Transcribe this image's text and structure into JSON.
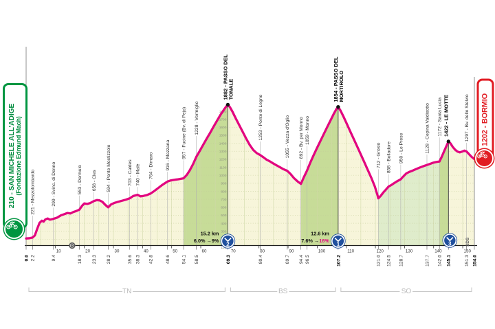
{
  "page": {
    "background": "#ffffff"
  },
  "start_label": {
    "line1": "210 - SAN MICHELE ALL'ADIGE",
    "line2": "(Fondazione Edmund Mach)"
  },
  "finish_label": {
    "text": "1202 - BORMIO"
  },
  "sds_label": "SDS",
  "provinces": [
    {
      "code": "TN",
      "from_km": 0,
      "to_km": 69.3
    },
    {
      "code": "BS",
      "from_km": 69.3,
      "to_km": 107.2
    },
    {
      "code": "SO",
      "from_km": 107.2,
      "to_km": 154
    }
  ],
  "colors": {
    "pink": "#e2067f",
    "cream": "#f7f5da",
    "band_mid": "#c7dc98",
    "band_light": "#dfeccb",
    "grid_v": "#cfd8a8",
    "grid_h": "#c3cb98",
    "axis": "#1c1c1c",
    "border": "#909090",
    "label": "#2e2e2e",
    "soft": "#9b9b9b",
    "ladder": "#8e9480",
    "blue": "#20509e",
    "green": "#009540",
    "red": "#e11b22",
    "bracket": "#c8c8c8",
    "province": "#b8b8b8"
  },
  "chart_data": {
    "type": "area",
    "x_unit": "km",
    "y_unit": "m",
    "xlim": [
      0,
      154
    ],
    "axis": {
      "x_tick_step": 10,
      "x_first_label": 10,
      "x_last_label": 150
    },
    "elevation_scale": {
      "min": 100,
      "max": 1800,
      "step": 100,
      "at_km": 69.3
    },
    "arrow": "→",
    "waypoints": [
      {
        "km": 0.0,
        "elev": 210,
        "name": null,
        "bold": true
      },
      {
        "km": 2.2,
        "elev": 221,
        "name": "Mezzolombardo"
      },
      {
        "km": 9.4,
        "elev": 299,
        "name": "Svinc. di Denno"
      },
      {
        "km": 18.3,
        "elev": 553,
        "name": "Dermulo"
      },
      {
        "km": 23.3,
        "elev": 658,
        "name": "Cles"
      },
      {
        "km": 28.2,
        "elev": 594,
        "name": "Ponte Mostizzolo"
      },
      {
        "km": 35.6,
        "elev": 703,
        "name": "Caldes"
      },
      {
        "km": 38.3,
        "elev": 740,
        "name": "Malè"
      },
      {
        "km": 42.8,
        "elev": 764,
        "name": "Dimaro"
      },
      {
        "km": 48.6,
        "elev": 916,
        "name": "Mezzana"
      },
      {
        "km": 54.1,
        "elev": 957,
        "name": "Fucine (Bv. di Pejo)"
      },
      {
        "km": 58.5,
        "elev": 1228,
        "name": "Vermiglio"
      },
      {
        "km": 69.3,
        "elev": 1882,
        "name": "PASSO DEL TONALE",
        "lines": [
          "1882 - PASSO DEL",
          "TONALE"
        ],
        "bold": true,
        "peak": true
      },
      {
        "km": 80.4,
        "elev": 1253,
        "name": "Ponte di Legno"
      },
      {
        "km": 89.7,
        "elev": 1055,
        "name": "Vezza d'Oglio"
      },
      {
        "km": 94.4,
        "elev": 892,
        "name": "Bv. per Monno"
      },
      {
        "km": 96.5,
        "elev": 1059,
        "name": "Monno"
      },
      {
        "km": 107.2,
        "elev": 1854,
        "name": "PASSO DEL MORTIROLO",
        "lines": [
          "1854 - PASSO DEL",
          "MORTIROLO"
        ],
        "bold": true,
        "peak": true
      },
      {
        "km": 121.0,
        "elev": 712,
        "name": "Grosio"
      },
      {
        "km": 124.5,
        "elev": 858,
        "name": "Bolladore"
      },
      {
        "km": 128.7,
        "elev": 950,
        "name": "Le Prese"
      },
      {
        "km": 137.7,
        "elev": 1128,
        "name": "Cepina Valdisotto"
      },
      {
        "km": 142.0,
        "elev": 1172,
        "name": "Santa Lucia"
      },
      {
        "km": 145.1,
        "elev": 1422,
        "name": "LE MOTTE",
        "lines": [
          "1422 - LE MOTTE"
        ],
        "bold": true,
        "peak": true
      },
      {
        "km": 151.3,
        "elev": 1297,
        "name": "Bv. dello Stelvio"
      },
      {
        "km": 154.0,
        "elev": 1202,
        "name": null,
        "bold": true
      }
    ],
    "climbs": [
      {
        "summit_km": 69.3,
        "category": "2",
        "length": "15.2 km",
        "avg": "6.0%",
        "max": "9%",
        "max_highlight": false,
        "stats": true
      },
      {
        "summit_km": 107.2,
        "category": "1",
        "length": "12.6 km",
        "avg": "7.6%",
        "max": "16%",
        "max_highlight": true,
        "stats": true
      },
      {
        "summit_km": 145.1,
        "category": "3",
        "stats": false
      }
    ],
    "bands": [
      {
        "from": 54.1,
        "to": 69.3,
        "shade": "mid"
      },
      {
        "from": 94.4,
        "to": 107.2,
        "shade": "mid"
      },
      {
        "from": 121.0,
        "to": 142.0,
        "shade": "light"
      },
      {
        "from": 142.0,
        "to": 145.1,
        "shade": "mid"
      }
    ],
    "axis_marker_km": 15.8,
    "profile": [
      [
        0,
        210
      ],
      [
        1.2,
        213
      ],
      [
        2.2,
        221
      ],
      [
        3,
        248
      ],
      [
        3.8,
        330
      ],
      [
        4.6,
        405
      ],
      [
        5.4,
        432
      ],
      [
        6,
        420
      ],
      [
        6.6,
        448
      ],
      [
        7.4,
        460
      ],
      [
        8.2,
        445
      ],
      [
        9.4,
        455
      ],
      [
        10.6,
        470
      ],
      [
        12,
        500
      ],
      [
        13.2,
        515
      ],
      [
        14.2,
        528
      ],
      [
        15.2,
        522
      ],
      [
        16.2,
        540
      ],
      [
        17.2,
        552
      ],
      [
        18.3,
        570
      ],
      [
        19.2,
        618
      ],
      [
        20,
        648
      ],
      [
        21,
        642
      ],
      [
        22,
        652
      ],
      [
        23.3,
        678
      ],
      [
        24.3,
        690
      ],
      [
        25.2,
        686
      ],
      [
        26.2,
        668
      ],
      [
        27.2,
        630
      ],
      [
        28.2,
        600
      ],
      [
        29.2,
        636
      ],
      [
        30.4,
        655
      ],
      [
        31.6,
        668
      ],
      [
        33,
        682
      ],
      [
        34.3,
        695
      ],
      [
        35.6,
        712
      ],
      [
        36.8,
        740
      ],
      [
        38.3,
        756
      ],
      [
        39.3,
        736
      ],
      [
        40.3,
        742
      ],
      [
        41.5,
        752
      ],
      [
        42.8,
        772
      ],
      [
        44,
        802
      ],
      [
        45.3,
        838
      ],
      [
        46.6,
        874
      ],
      [
        48,
        908
      ],
      [
        48.6,
        922
      ],
      [
        49.8,
        936
      ],
      [
        51,
        944
      ],
      [
        52.3,
        950
      ],
      [
        54.1,
        962
      ],
      [
        55.2,
        1005
      ],
      [
        56.2,
        1060
      ],
      [
        57.3,
        1135
      ],
      [
        58.5,
        1232
      ],
      [
        59.6,
        1300
      ],
      [
        60.8,
        1378
      ],
      [
        62,
        1455
      ],
      [
        63.2,
        1530
      ],
      [
        64.4,
        1608
      ],
      [
        65.6,
        1682
      ],
      [
        66.8,
        1757
      ],
      [
        68,
        1822
      ],
      [
        68.8,
        1862
      ],
      [
        69.3,
        1882
      ],
      [
        70,
        1852
      ],
      [
        70.8,
        1800
      ],
      [
        72,
        1713
      ],
      [
        73.2,
        1628
      ],
      [
        74.4,
        1543
      ],
      [
        75.6,
        1458
      ],
      [
        76.8,
        1380
      ],
      [
        78,
        1318
      ],
      [
        79.2,
        1278
      ],
      [
        80.4,
        1253
      ],
      [
        81.4,
        1228
      ],
      [
        82.6,
        1195
      ],
      [
        83.8,
        1172
      ],
      [
        84.8,
        1150
      ],
      [
        85.8,
        1128
      ],
      [
        87,
        1105
      ],
      [
        88.3,
        1078
      ],
      [
        89.7,
        1055
      ],
      [
        90.8,
        1018
      ],
      [
        92,
        965
      ],
      [
        93.2,
        925
      ],
      [
        94.4,
        892
      ],
      [
        95.4,
        975
      ],
      [
        96.5,
        1059
      ],
      [
        97.6,
        1155
      ],
      [
        98.7,
        1245
      ],
      [
        99.8,
        1330
      ],
      [
        101,
        1420
      ],
      [
        102.2,
        1510
      ],
      [
        103.4,
        1600
      ],
      [
        104.6,
        1688
      ],
      [
        105.8,
        1775
      ],
      [
        106.7,
        1833
      ],
      [
        107.2,
        1854
      ],
      [
        108,
        1810
      ],
      [
        109,
        1735
      ],
      [
        110.2,
        1640
      ],
      [
        111.4,
        1545
      ],
      [
        112.6,
        1450
      ],
      [
        113.8,
        1355
      ],
      [
        115,
        1258
      ],
      [
        116.2,
        1162
      ],
      [
        117.4,
        1065
      ],
      [
        118.6,
        968
      ],
      [
        119.8,
        860
      ],
      [
        120.6,
        765
      ],
      [
        121,
        712
      ],
      [
        121.8,
        742
      ],
      [
        122.8,
        788
      ],
      [
        123.6,
        820
      ],
      [
        124.5,
        858
      ],
      [
        125.4,
        876
      ],
      [
        126.4,
        900
      ],
      [
        127.5,
        926
      ],
      [
        128.7,
        950
      ],
      [
        129.6,
        986
      ],
      [
        130.6,
        1022
      ],
      [
        131.6,
        1042
      ],
      [
        132.8,
        1058
      ],
      [
        134,
        1078
      ],
      [
        135.2,
        1096
      ],
      [
        136.4,
        1112
      ],
      [
        137.7,
        1128
      ],
      [
        138.8,
        1142
      ],
      [
        140,
        1158
      ],
      [
        141,
        1166
      ],
      [
        142,
        1172
      ],
      [
        142.8,
        1232
      ],
      [
        143.6,
        1300
      ],
      [
        144.4,
        1366
      ],
      [
        145.1,
        1422
      ],
      [
        145.8,
        1398
      ],
      [
        146.6,
        1352
      ],
      [
        147.4,
        1318
      ],
      [
        148.2,
        1296
      ],
      [
        149,
        1286
      ],
      [
        149.8,
        1296
      ],
      [
        150.6,
        1308
      ],
      [
        151.3,
        1297
      ],
      [
        152.2,
        1262
      ],
      [
        153.1,
        1228
      ],
      [
        154,
        1202
      ]
    ]
  }
}
